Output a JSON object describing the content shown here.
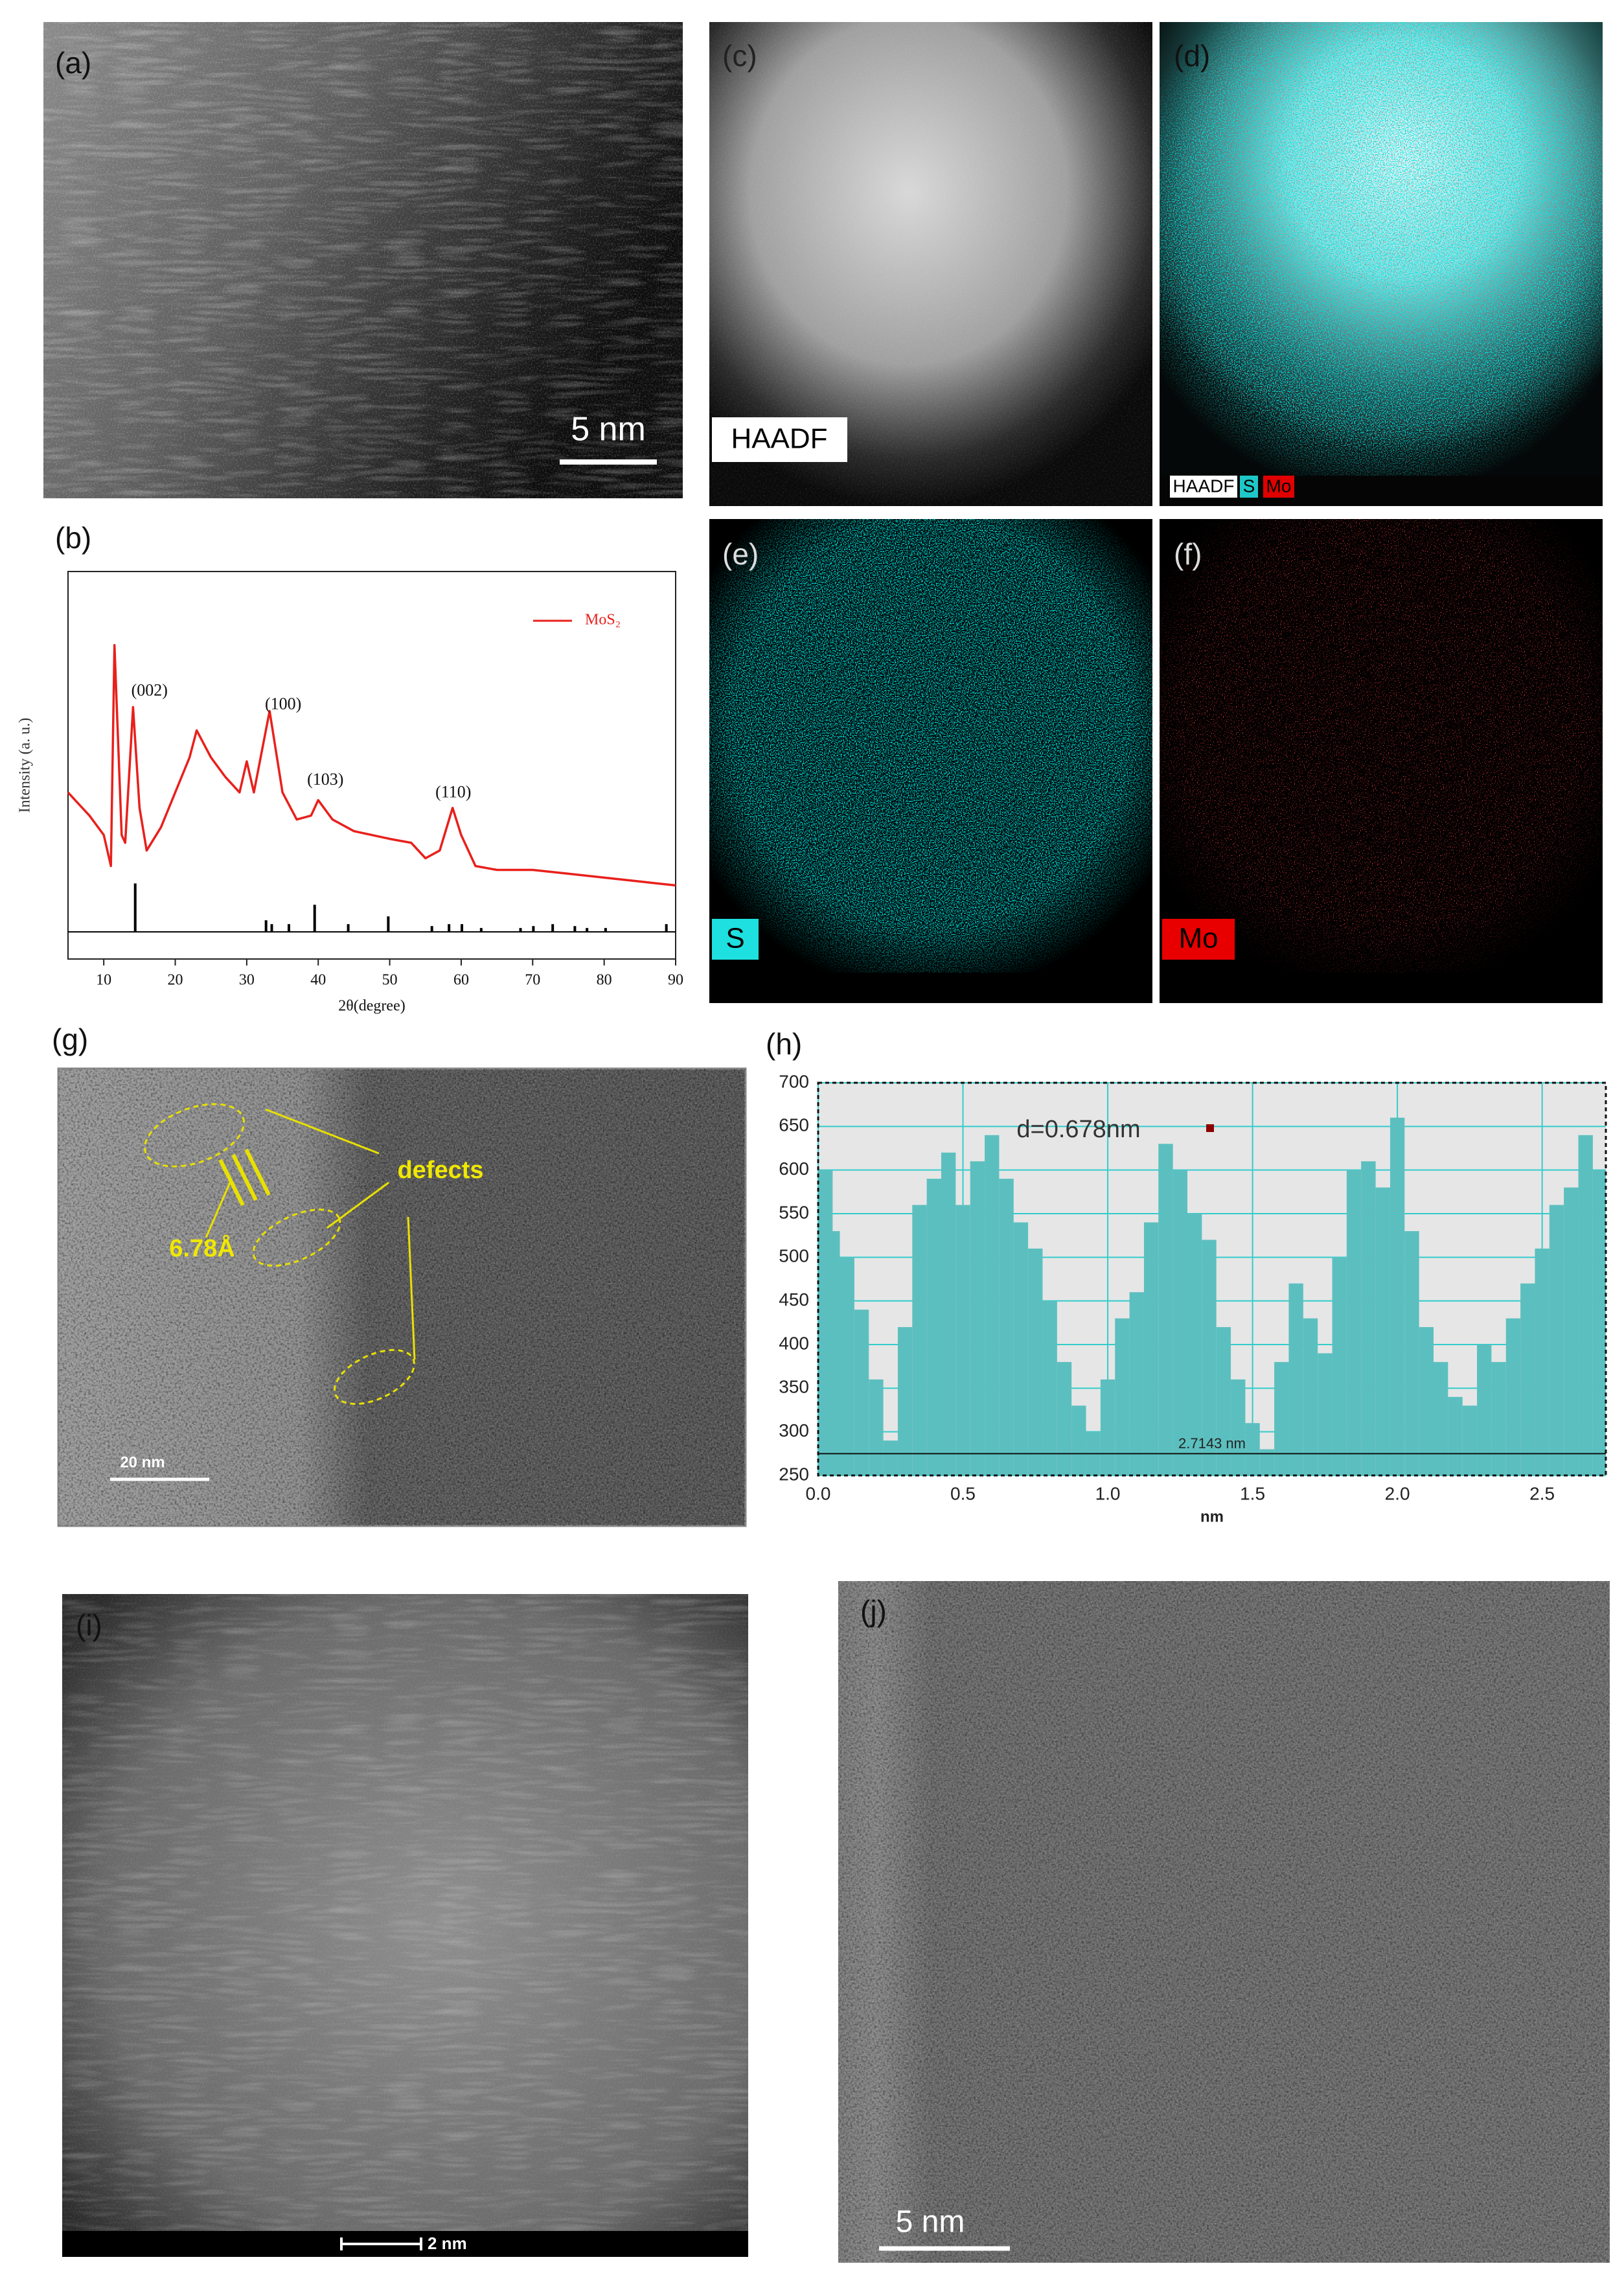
{
  "figure": {
    "panels": [
      {
        "label": "(a)",
        "scale_bar": "5 nm"
      },
      {
        "label": "(c)",
        "caption": "HAADF"
      },
      {
        "label": "(d)",
        "legend": [
          "HAADF",
          "S",
          "Mo"
        ]
      },
      {
        "label": "(e)",
        "caption": "S"
      },
      {
        "label": "(f)",
        "caption": "Mo"
      },
      {
        "label": "(g)",
        "annotations": [
          "defects",
          "6.78Å"
        ],
        "scale_bar": "20 nm"
      },
      {
        "label": "(i)",
        "scale_bar": "2 nm"
      },
      {
        "label": "(j)",
        "scale_bar": "5 nm"
      }
    ]
  },
  "chart_data": [
    {
      "type": "line",
      "panel_label": "(b)",
      "xlabel": "2θ(degree)",
      "ylabel": "Intensity (a. u.)",
      "xlim": [
        5,
        90
      ],
      "xticks": [
        10,
        20,
        30,
        40,
        50,
        60,
        70,
        80,
        90
      ],
      "ylim": [
        0,
        100
      ],
      "legend": "upper right",
      "x": [
        5,
        8,
        10,
        11,
        11.5,
        12.5,
        13,
        14.1,
        15,
        16,
        18,
        20,
        22,
        23,
        25,
        27,
        29,
        30,
        31,
        33.2,
        35,
        37,
        39,
        40,
        42,
        45,
        50,
        53,
        55,
        57,
        58.8,
        60,
        62,
        65,
        70,
        75,
        80,
        85,
        90
      ],
      "series": [
        {
          "name": "MoS₂",
          "color": "#e8201c",
          "values": [
            43,
            37,
            32,
            24,
            81,
            32,
            30,
            65,
            39,
            28,
            34,
            43,
            52,
            59,
            52,
            47,
            43,
            51,
            43,
            64,
            43,
            36,
            37,
            41,
            36,
            33,
            31,
            30,
            26,
            28,
            39,
            32,
            24,
            23,
            23,
            22,
            21,
            20,
            19
          ]
        }
      ],
      "reference": {
        "color": "#000000",
        "baseline": 7,
        "x": [
          14.4,
          32.7,
          33.5,
          35.9,
          39.5,
          44.2,
          49.8,
          55.9,
          58.3,
          60.1,
          62.8,
          68.3,
          70.1,
          72.8,
          75.9,
          77.6,
          80.2,
          88.7
        ],
        "values": [
          19.5,
          10,
          9,
          9,
          14,
          9,
          11,
          8.5,
          9,
          9,
          8,
          8,
          8.5,
          9,
          8.5,
          8,
          8,
          9
        ]
      },
      "annotations": [
        {
          "text": "(002)",
          "x": 16.4,
          "y": 69
        },
        {
          "text": "(100)",
          "x": 35.1,
          "y": 65.5
        },
        {
          "text": "(103)",
          "x": 41.0,
          "y": 46
        },
        {
          "text": "(110)",
          "x": 58.9,
          "y": 42.7
        }
      ]
    },
    {
      "type": "bar",
      "panel_label": "(h)",
      "xlabel": "nm",
      "annotation": "d=0.678nm",
      "xlim": [
        0,
        2.72
      ],
      "xticks": [
        {
          "value": 0,
          "label": "0.0"
        },
        0.5,
        {
          "value": 1,
          "label": "1.0"
        },
        1.5,
        {
          "value": 2,
          "label": "2.0"
        },
        2.5
      ],
      "ylim": [
        250,
        700
      ],
      "yticks": [
        250,
        300,
        350,
        400,
        450,
        500,
        550,
        600,
        650,
        700
      ],
      "grid": true,
      "grid_color": "#33cccc",
      "background": "#e6e6e6",
      "color": "#5cbfbf",
      "measure": {
        "label": "2.7143 nm",
        "y": 275
      },
      "x": [
        0.0,
        0.05,
        0.1,
        0.15,
        0.2,
        0.25,
        0.3,
        0.35,
        0.4,
        0.45,
        0.5,
        0.55,
        0.6,
        0.65,
        0.7,
        0.75,
        0.8,
        0.85,
        0.9,
        0.95,
        1.0,
        1.05,
        1.1,
        1.15,
        1.2,
        1.25,
        1.3,
        1.35,
        1.4,
        1.45,
        1.5,
        1.55,
        1.6,
        1.65,
        1.7,
        1.75,
        1.8,
        1.85,
        1.9,
        1.95,
        2.0,
        2.05,
        2.1,
        2.15,
        2.2,
        2.25,
        2.3,
        2.35,
        2.4,
        2.45,
        2.5,
        2.55,
        2.6,
        2.65,
        2.7
      ],
      "values": [
        600,
        530,
        500,
        440,
        360,
        290,
        420,
        560,
        590,
        620,
        560,
        610,
        640,
        590,
        540,
        510,
        450,
        380,
        330,
        300,
        360,
        430,
        460,
        540,
        630,
        600,
        550,
        520,
        420,
        360,
        310,
        280,
        380,
        470,
        430,
        390,
        500,
        600,
        610,
        580,
        660,
        530,
        420,
        380,
        340,
        330,
        400,
        380,
        430,
        470,
        510,
        560,
        580,
        640,
        600
      ]
    }
  ]
}
